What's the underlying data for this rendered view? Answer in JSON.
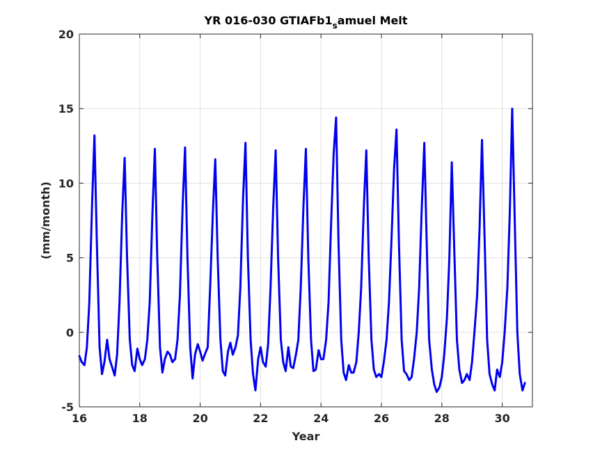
{
  "chart_data": {
    "type": "line",
    "title_main": "YR 016-030 GTIAFb1",
    "title_sub": "s",
    "title_tail": "amuel Melt",
    "xlabel": "Year",
    "ylabel": "(mm/month)",
    "xlim": [
      16,
      31
    ],
    "ylim": [
      -5,
      20
    ],
    "xticks": [
      16,
      18,
      20,
      22,
      24,
      26,
      28,
      30
    ],
    "yticks": [
      -5,
      0,
      5,
      10,
      15,
      20
    ],
    "grid": true,
    "line_color": "#0000ee",
    "series": [
      {
        "values": [
          [
            16.0,
            -1.6
          ],
          [
            16.08,
            -2.0
          ],
          [
            16.17,
            -2.2
          ],
          [
            16.25,
            -1.0
          ],
          [
            16.33,
            2.0
          ],
          [
            16.42,
            8.5
          ],
          [
            16.5,
            13.2
          ],
          [
            16.58,
            6.0
          ],
          [
            16.67,
            -1.0
          ],
          [
            16.75,
            -2.8
          ],
          [
            16.83,
            -2.0
          ],
          [
            16.92,
            -0.5
          ],
          [
            17.0,
            -1.8
          ],
          [
            17.08,
            -2.3
          ],
          [
            17.17,
            -2.9
          ],
          [
            17.25,
            -1.5
          ],
          [
            17.33,
            2.0
          ],
          [
            17.42,
            8.0
          ],
          [
            17.5,
            11.7
          ],
          [
            17.58,
            5.0
          ],
          [
            17.67,
            -0.5
          ],
          [
            17.75,
            -2.2
          ],
          [
            17.83,
            -2.6
          ],
          [
            17.92,
            -1.1
          ],
          [
            18.0,
            -1.8
          ],
          [
            18.08,
            -2.2
          ],
          [
            18.17,
            -1.8
          ],
          [
            18.25,
            -0.5
          ],
          [
            18.33,
            2.0
          ],
          [
            18.42,
            8.0
          ],
          [
            18.5,
            12.3
          ],
          [
            18.58,
            5.0
          ],
          [
            18.67,
            -1.0
          ],
          [
            18.75,
            -2.7
          ],
          [
            18.83,
            -1.8
          ],
          [
            18.92,
            -1.3
          ],
          [
            19.0,
            -1.5
          ],
          [
            19.08,
            -2.0
          ],
          [
            19.17,
            -1.8
          ],
          [
            19.25,
            -0.5
          ],
          [
            19.33,
            2.5
          ],
          [
            19.42,
            8.5
          ],
          [
            19.5,
            12.4
          ],
          [
            19.58,
            5.0
          ],
          [
            19.67,
            -1.0
          ],
          [
            19.75,
            -3.1
          ],
          [
            19.83,
            -1.5
          ],
          [
            19.92,
            -0.8
          ],
          [
            20.0,
            -1.3
          ],
          [
            20.08,
            -1.9
          ],
          [
            20.17,
            -1.4
          ],
          [
            20.25,
            -1.0
          ],
          [
            20.33,
            3.0
          ],
          [
            20.42,
            8.0
          ],
          [
            20.5,
            11.6
          ],
          [
            20.58,
            5.0
          ],
          [
            20.67,
            -0.5
          ],
          [
            20.75,
            -2.6
          ],
          [
            20.83,
            -2.9
          ],
          [
            20.92,
            -1.3
          ],
          [
            21.0,
            -0.7
          ],
          [
            21.08,
            -1.5
          ],
          [
            21.17,
            -1.0
          ],
          [
            21.25,
            -0.2
          ],
          [
            21.33,
            3.0
          ],
          [
            21.42,
            9.0
          ],
          [
            21.5,
            12.7
          ],
          [
            21.58,
            5.0
          ],
          [
            21.67,
            -0.5
          ],
          [
            21.75,
            -2.8
          ],
          [
            21.83,
            -3.9
          ],
          [
            21.92,
            -1.8
          ],
          [
            22.0,
            -1.0
          ],
          [
            22.08,
            -2.0
          ],
          [
            22.17,
            -2.3
          ],
          [
            22.25,
            -0.8
          ],
          [
            22.33,
            3.0
          ],
          [
            22.42,
            8.5
          ],
          [
            22.5,
            12.2
          ],
          [
            22.58,
            5.0
          ],
          [
            22.67,
            -0.5
          ],
          [
            22.75,
            -2.0
          ],
          [
            22.83,
            -2.6
          ],
          [
            22.92,
            -1.0
          ],
          [
            23.0,
            -2.3
          ],
          [
            23.08,
            -2.4
          ],
          [
            23.17,
            -1.5
          ],
          [
            23.25,
            -0.5
          ],
          [
            23.33,
            3.0
          ],
          [
            23.42,
            8.5
          ],
          [
            23.5,
            12.3
          ],
          [
            23.58,
            5.0
          ],
          [
            23.67,
            -0.5
          ],
          [
            23.75,
            -2.6
          ],
          [
            23.83,
            -2.5
          ],
          [
            23.92,
            -1.2
          ],
          [
            24.0,
            -1.8
          ],
          [
            24.08,
            -1.8
          ],
          [
            24.17,
            -0.5
          ],
          [
            24.25,
            2.0
          ],
          [
            24.33,
            7.0
          ],
          [
            24.42,
            12.0
          ],
          [
            24.5,
            14.4
          ],
          [
            24.58,
            6.0
          ],
          [
            24.67,
            -0.5
          ],
          [
            24.75,
            -2.7
          ],
          [
            24.83,
            -3.2
          ],
          [
            24.92,
            -2.2
          ],
          [
            25.0,
            -2.7
          ],
          [
            25.08,
            -2.7
          ],
          [
            25.17,
            -2.0
          ],
          [
            25.25,
            0.0
          ],
          [
            25.33,
            3.0
          ],
          [
            25.42,
            8.5
          ],
          [
            25.5,
            12.2
          ],
          [
            25.58,
            5.0
          ],
          [
            25.67,
            -0.5
          ],
          [
            25.75,
            -2.5
          ],
          [
            25.83,
            -3.0
          ],
          [
            25.92,
            -2.8
          ],
          [
            26.0,
            -3.0
          ],
          [
            26.08,
            -2.0
          ],
          [
            26.17,
            -0.5
          ],
          [
            26.25,
            2.0
          ],
          [
            26.33,
            6.0
          ],
          [
            26.42,
            11.0
          ],
          [
            26.5,
            13.6
          ],
          [
            26.58,
            6.0
          ],
          [
            26.67,
            -0.5
          ],
          [
            26.75,
            -2.6
          ],
          [
            26.83,
            -2.8
          ],
          [
            26.92,
            -3.2
          ],
          [
            27.0,
            -3.0
          ],
          [
            27.08,
            -1.8
          ],
          [
            27.17,
            0.0
          ],
          [
            27.25,
            3.0
          ],
          [
            27.33,
            8.0
          ],
          [
            27.42,
            12.7
          ],
          [
            27.5,
            6.0
          ],
          [
            27.58,
            -0.5
          ],
          [
            27.67,
            -2.5
          ],
          [
            27.75,
            -3.5
          ],
          [
            27.83,
            -4.0
          ],
          [
            27.92,
            -3.7
          ],
          [
            28.0,
            -3.0
          ],
          [
            28.08,
            -1.5
          ],
          [
            28.17,
            1.0
          ],
          [
            28.25,
            5.0
          ],
          [
            28.33,
            11.4
          ],
          [
            28.42,
            5.0
          ],
          [
            28.5,
            -0.5
          ],
          [
            28.58,
            -2.5
          ],
          [
            28.67,
            -3.4
          ],
          [
            28.75,
            -3.2
          ],
          [
            28.83,
            -2.8
          ],
          [
            28.92,
            -3.2
          ],
          [
            29.0,
            -2.0
          ],
          [
            29.08,
            0.0
          ],
          [
            29.17,
            2.5
          ],
          [
            29.25,
            7.0
          ],
          [
            29.33,
            12.9
          ],
          [
            29.42,
            6.0
          ],
          [
            29.5,
            -0.5
          ],
          [
            29.58,
            -2.8
          ],
          [
            29.67,
            -3.5
          ],
          [
            29.75,
            -3.9
          ],
          [
            29.83,
            -2.5
          ],
          [
            29.92,
            -3.0
          ],
          [
            30.0,
            -2.0
          ],
          [
            30.08,
            0.0
          ],
          [
            30.17,
            3.0
          ],
          [
            30.25,
            8.0
          ],
          [
            30.33,
            15.0
          ],
          [
            30.42,
            7.0
          ],
          [
            30.5,
            0.0
          ],
          [
            30.58,
            -2.8
          ],
          [
            30.67,
            -3.9
          ],
          [
            30.75,
            -3.4
          ]
        ]
      }
    ]
  }
}
